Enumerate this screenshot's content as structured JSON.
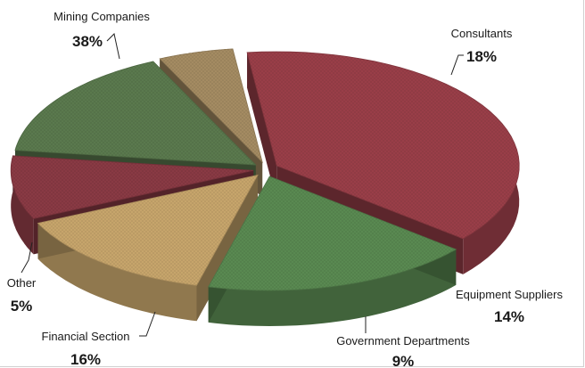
{
  "chart_data": {
    "type": "pie",
    "title": "",
    "categories": [
      "Mining Companies",
      "Consultants",
      "Equipment Suppliers",
      "Government Departments",
      "Financial Section",
      "Other"
    ],
    "series": [
      {
        "values": [
          38,
          18,
          14,
          9,
          16,
          5
        ]
      }
    ],
    "labels": [
      {
        "name": "Mining Companies",
        "pct": "38%"
      },
      {
        "name": "Consultants",
        "pct": "18%"
      },
      {
        "name": "Equipment Suppliers",
        "pct": "14%"
      },
      {
        "name": "Government Departments",
        "pct": "9%"
      },
      {
        "name": "Financial Section",
        "pct": "16%"
      },
      {
        "name": "Other",
        "pct": "5%"
      }
    ],
    "colors": [
      "#9a3f49",
      "#5a8a52",
      "#c8a66c",
      "#8a3a44",
      "#5b7a4e",
      "#a58c63"
    ],
    "style": "3d-exploded",
    "legend": "none"
  }
}
